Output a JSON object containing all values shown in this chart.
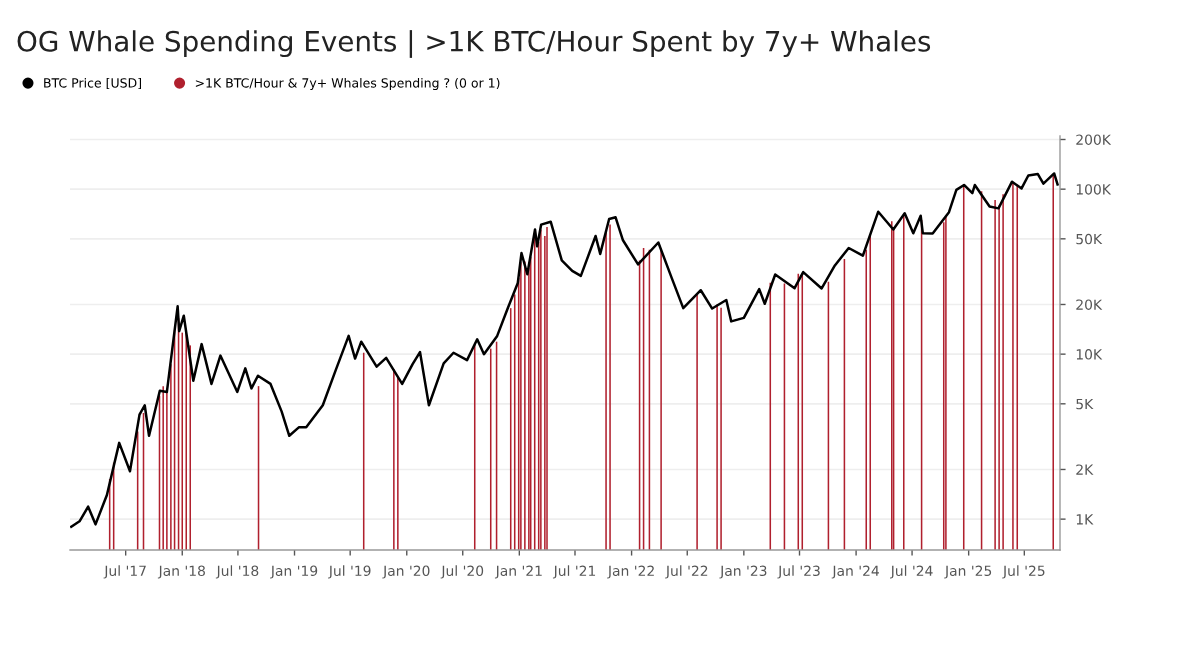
{
  "chart_data": {
    "type": "line",
    "title": "OG Whale Spending Events | >1K BTC/Hour Spent by 7y+ Whales",
    "log": "y",
    "grid": "y",
    "legend": "top left",
    "marker": "none",
    "line_style": "solid",
    "xlim": [
      "2017-01-01",
      "2025-10-25"
    ],
    "xticks": [
      {
        "value": "2017-07-01",
        "label": "Jul '17"
      },
      {
        "value": "2018-01-01",
        "label": "Jan '18"
      },
      {
        "value": "2018-07-01",
        "label": "Jul '18"
      },
      {
        "value": "2019-01-01",
        "label": "Jan '19"
      },
      {
        "value": "2019-07-01",
        "label": "Jul '19"
      },
      {
        "value": "2020-01-01",
        "label": "Jan '20"
      },
      {
        "value": "2020-07-01",
        "label": "Jul '20"
      },
      {
        "value": "2021-01-01",
        "label": "Jan '21"
      },
      {
        "value": "2021-07-01",
        "label": "Jul '21"
      },
      {
        "value": "2022-01-01",
        "label": "Jan '22"
      },
      {
        "value": "2022-07-01",
        "label": "Jul '22"
      },
      {
        "value": "2023-01-01",
        "label": "Jan '23"
      },
      {
        "value": "2023-07-01",
        "label": "Jul '23"
      },
      {
        "value": "2024-01-01",
        "label": "Jan '24"
      },
      {
        "value": "2024-07-01",
        "label": "Jul '24"
      },
      {
        "value": "2025-01-01",
        "label": "Jan '25"
      },
      {
        "value": "2025-07-01",
        "label": "Jul '25"
      }
    ],
    "ylim": [
      650,
      210000
    ],
    "yticks": [
      {
        "value": 1000,
        "label": "1K"
      },
      {
        "value": 2000,
        "label": "2K"
      },
      {
        "value": 5000,
        "label": "5K"
      },
      {
        "value": 10000,
        "label": "10K"
      },
      {
        "value": 20000,
        "label": "20K"
      },
      {
        "value": 50000,
        "label": "50K"
      },
      {
        "value": 100000,
        "label": "100K"
      },
      {
        "value": 200000,
        "label": "200K"
      }
    ],
    "series": [
      {
        "name": "BTC Price [USD]",
        "color": "#000000",
        "x": [
          "2017-01-05",
          "2017-02-01",
          "2017-03-01",
          "2017-03-25",
          "2017-05-01",
          "2017-06-10",
          "2017-07-15",
          "2017-08-15",
          "2017-09-01",
          "2017-09-15",
          "2017-10-20",
          "2017-11-12",
          "2017-12-17",
          "2017-12-22",
          "2018-01-06",
          "2018-02-06",
          "2018-03-05",
          "2018-04-06",
          "2018-05-05",
          "2018-06-29",
          "2018-07-25",
          "2018-08-14",
          "2018-09-04",
          "2018-10-15",
          "2018-11-20",
          "2018-12-15",
          "2019-01-15",
          "2019-02-08",
          "2019-04-03",
          "2019-05-15",
          "2019-06-26",
          "2019-07-17",
          "2019-08-06",
          "2019-09-25",
          "2019-10-26",
          "2019-12-17",
          "2020-01-20",
          "2020-02-13",
          "2020-03-13",
          "2020-04-30",
          "2020-06-01",
          "2020-07-15",
          "2020-08-17",
          "2020-09-08",
          "2020-10-21",
          "2020-11-25",
          "2020-12-27",
          "2021-01-08",
          "2021-01-27",
          "2021-02-21",
          "2021-02-28",
          "2021-03-13",
          "2021-04-13",
          "2021-05-19",
          "2021-06-22",
          "2021-07-20",
          "2021-09-06",
          "2021-09-21",
          "2021-10-20",
          "2021-11-10",
          "2021-12-04",
          "2022-01-22",
          "2022-03-29",
          "2022-05-12",
          "2022-06-18",
          "2022-08-14",
          "2022-09-20",
          "2022-11-05",
          "2022-11-21",
          "2023-01-01",
          "2023-02-20",
          "2023-03-10",
          "2023-04-13",
          "2023-06-15",
          "2023-07-13",
          "2023-09-11",
          "2023-10-24",
          "2023-12-08",
          "2024-01-23",
          "2024-03-13",
          "2024-05-01",
          "2024-06-07",
          "2024-07-05",
          "2024-07-29",
          "2024-08-05",
          "2024-09-06",
          "2024-10-29",
          "2024-11-22",
          "2024-12-17",
          "2025-01-13",
          "2025-01-21",
          "2025-03-10",
          "2025-04-08",
          "2025-05-22",
          "2025-06-22",
          "2025-07-14",
          "2025-08-14",
          "2025-09-01",
          "2025-10-06",
          "2025-10-17"
        ],
        "values": [
          900,
          970,
          1190,
          930,
          1400,
          2900,
          1950,
          4300,
          4900,
          3200,
          6000,
          5900,
          19500,
          13800,
          17100,
          6900,
          11500,
          6600,
          9800,
          5900,
          8200,
          6200,
          7400,
          6600,
          4500,
          3200,
          3600,
          3600,
          4900,
          8000,
          12900,
          9400,
          11900,
          8400,
          9500,
          6600,
          8700,
          10300,
          4900,
          8800,
          10200,
          9200,
          12300,
          10000,
          12900,
          19100,
          27000,
          41000,
          30500,
          57000,
          45000,
          61000,
          63500,
          37000,
          32000,
          29800,
          52000,
          40500,
          66000,
          67500,
          49000,
          35000,
          47500,
          28800,
          19000,
          24400,
          18900,
          21300,
          15800,
          16600,
          24800,
          20200,
          30400,
          25100,
          31400,
          25000,
          34500,
          44000,
          39500,
          73000,
          57000,
          71500,
          54000,
          69000,
          54000,
          53900,
          72500,
          99000,
          106000,
          94500,
          106000,
          78500,
          76500,
          111000,
          101000,
          121000,
          123500,
          108000,
          124500,
          107000
        ]
      },
      {
        "name": ">1K BTC/Hour & 7y+ Whales Spending ? (0 or 1)",
        "type": "bar",
        "color": "#b0202e",
        "x": [
          "2017-05-10",
          "2017-05-23",
          "2017-08-09",
          "2017-08-28",
          "2017-10-19",
          "2017-10-31",
          "2017-11-12",
          "2017-11-25",
          "2017-12-07",
          "2017-12-20",
          "2018-01-01",
          "2018-01-14",
          "2018-01-27",
          "2018-09-06",
          "2019-08-14",
          "2019-11-20",
          "2019-12-03",
          "2020-08-09",
          "2020-09-30",
          "2020-10-19",
          "2020-12-04",
          "2020-12-17",
          "2020-12-30",
          "2021-01-06",
          "2021-01-19",
          "2021-02-01",
          "2021-02-07",
          "2021-02-20",
          "2021-03-05",
          "2021-03-12",
          "2021-03-25",
          "2021-04-01",
          "2021-10-10",
          "2021-10-23",
          "2022-01-27",
          "2022-02-09",
          "2022-02-28",
          "2022-04-07",
          "2022-08-02",
          "2022-10-06",
          "2022-10-19",
          "2023-03-28",
          "2023-05-13",
          "2023-06-27",
          "2023-07-10",
          "2023-10-03",
          "2023-11-24",
          "2024-02-03",
          "2024-02-16",
          "2024-04-26",
          "2024-05-02",
          "2024-06-04",
          "2024-08-01",
          "2024-10-12",
          "2024-10-19",
          "2024-12-16",
          "2025-02-12",
          "2025-03-28",
          "2025-04-10",
          "2025-04-23",
          "2025-05-25",
          "2025-06-08",
          "2025-10-03"
        ],
        "values": [
          1750,
          2200,
          3400,
          4400,
          5600,
          6400,
          6000,
          8700,
          14000,
          16500,
          13500,
          13800,
          11300,
          6400,
          10200,
          8100,
          7300,
          11700,
          10800,
          11900,
          19000,
          23000,
          28900,
          36000,
          36500,
          33500,
          39000,
          53000,
          48000,
          57000,
          52000,
          59000,
          55000,
          61000,
          37000,
          44000,
          43000,
          43500,
          23000,
          20000,
          19100,
          27100,
          26800,
          30700,
          30400,
          27500,
          37700,
          43000,
          52000,
          64000,
          58000,
          71000,
          65000,
          63000,
          68000,
          105000,
          97000,
          86000,
          79500,
          93000,
          109000,
          105500,
          122000
        ]
      }
    ]
  }
}
